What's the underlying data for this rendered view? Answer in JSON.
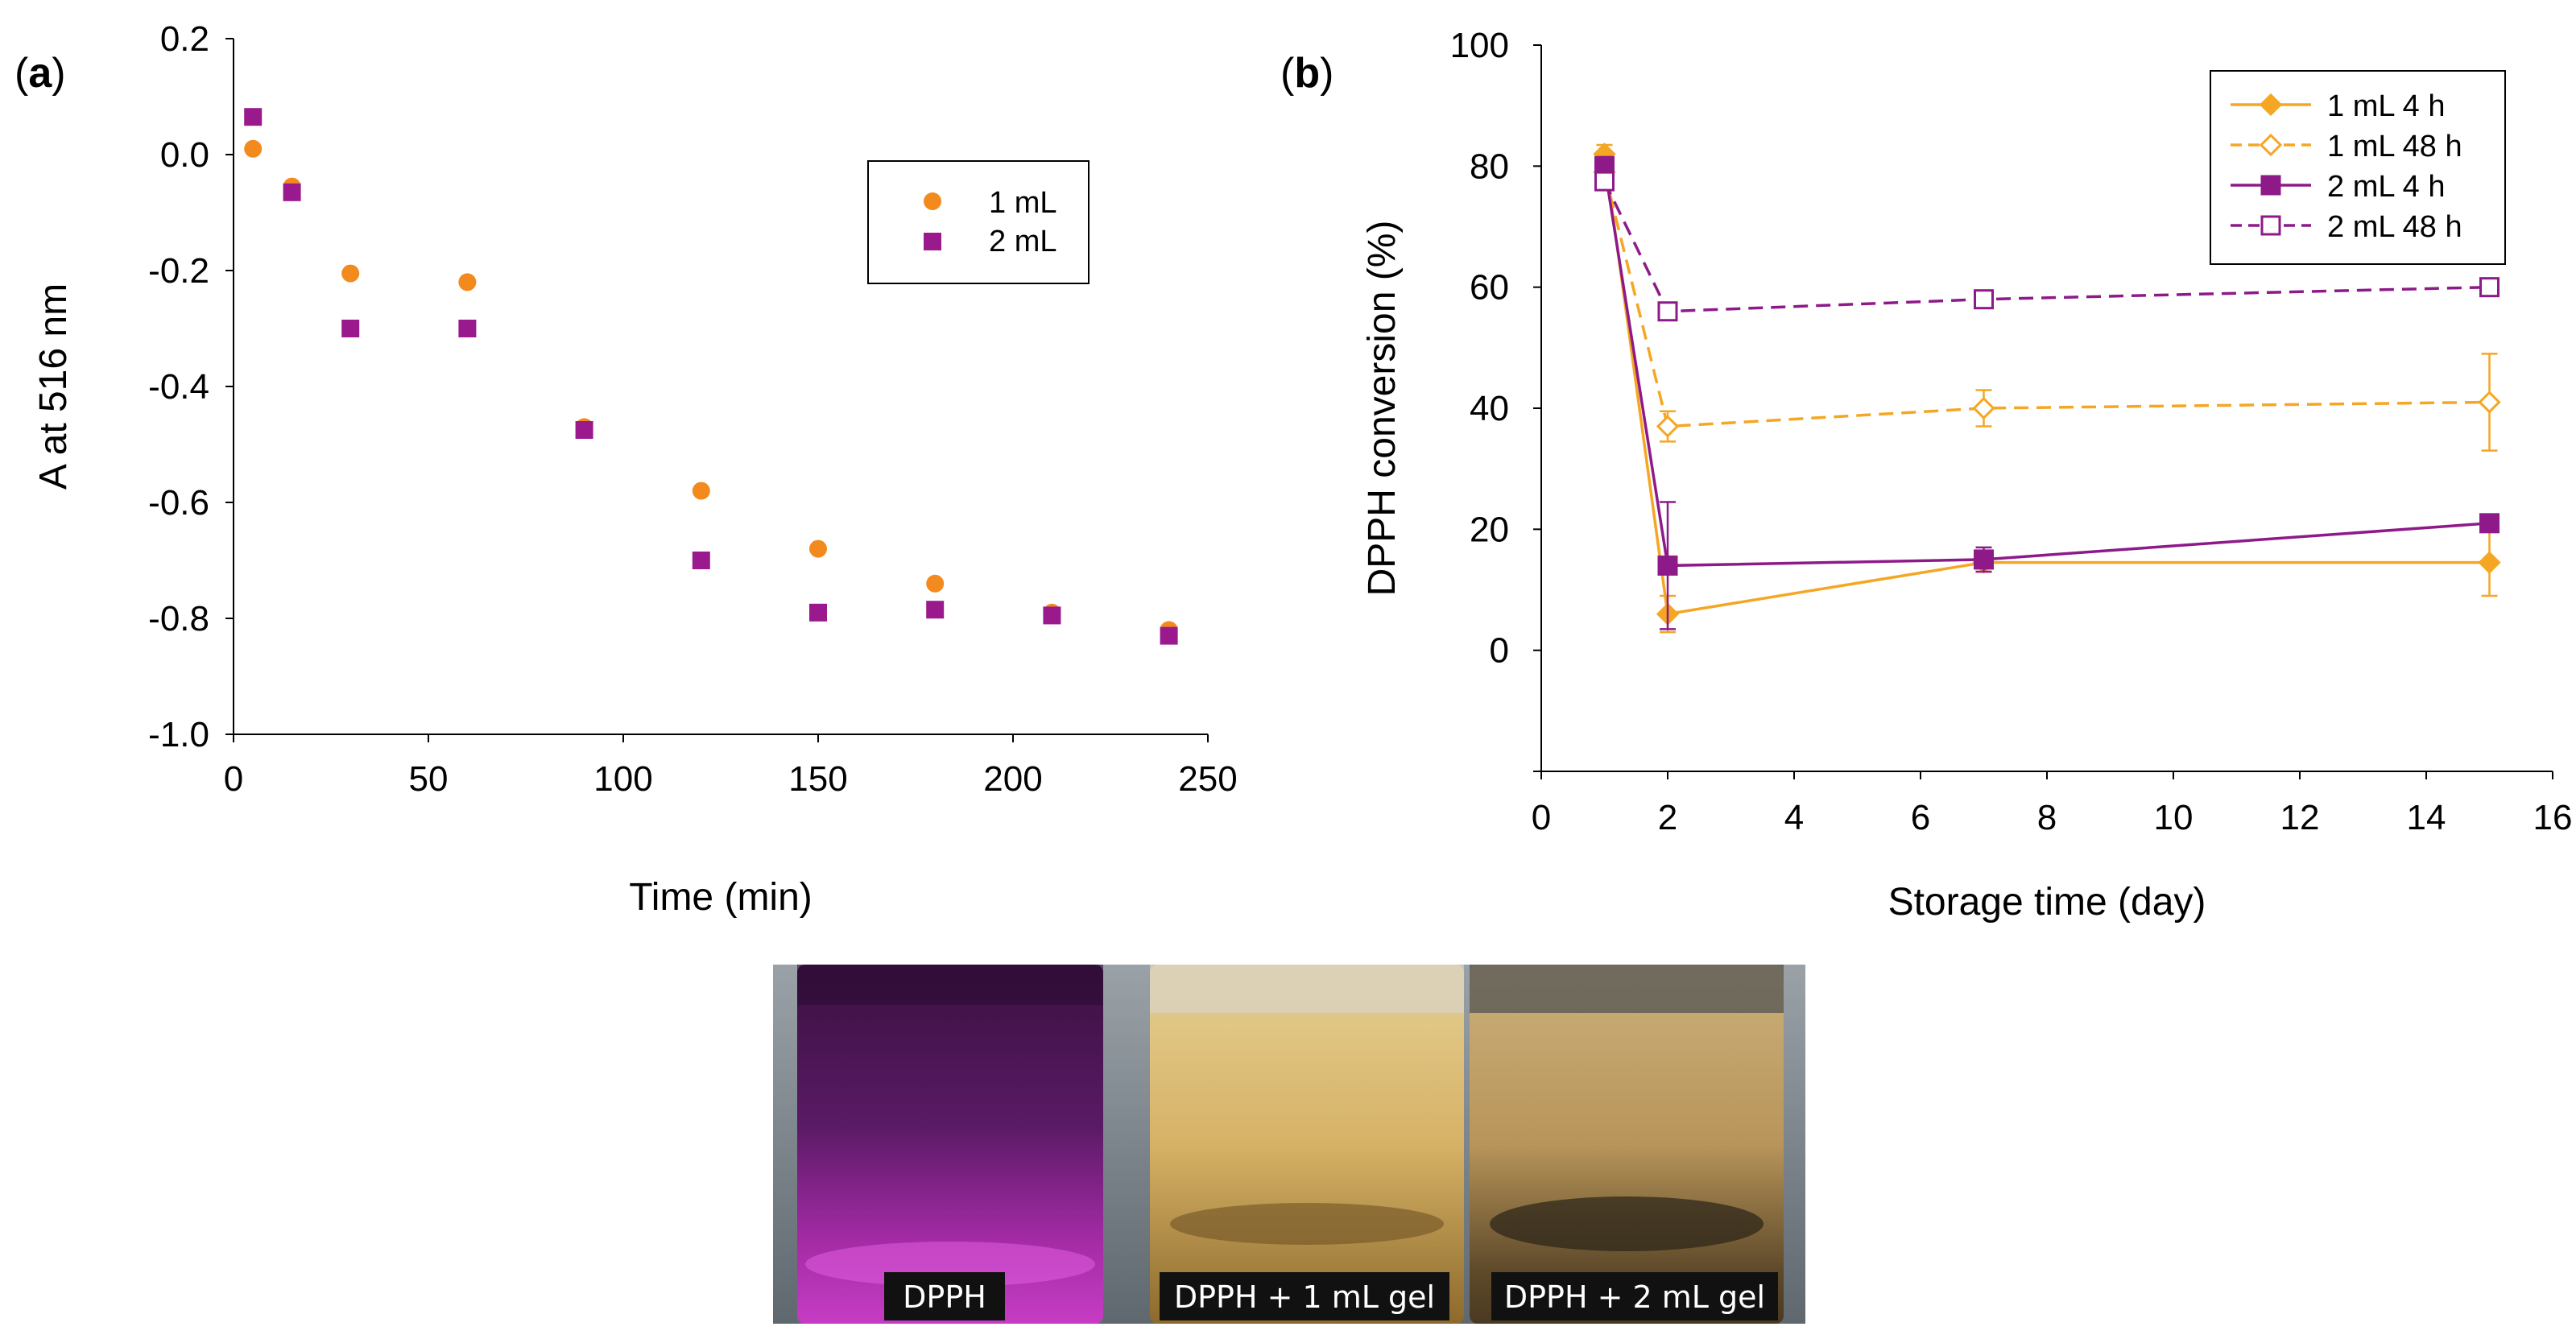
{
  "chart_data": [
    {
      "panel_label_open": "(",
      "panel_label_letter": "a",
      "panel_label_close": ")",
      "type": "scatter",
      "xlabel": "Time (min)",
      "ylabel": "A at 516 nm",
      "xlim": [
        0,
        250
      ],
      "ylim": [
        -1.0,
        0.2
      ],
      "xticks": [
        "0",
        "50",
        "100",
        "150",
        "200",
        "250"
      ],
      "yticks": [
        "0.2",
        "0.0",
        "-0.2",
        "-0.4",
        "-0.6",
        "-0.8",
        "-1.0"
      ],
      "legend_position": "upper-right",
      "series": [
        {
          "name": "1 mL",
          "color": "#f28a1e",
          "marker": "circle",
          "x": [
            5,
            15,
            30,
            60,
            90,
            120,
            150,
            180,
            210,
            240
          ],
          "y": [
            0.01,
            -0.055,
            -0.205,
            -0.22,
            -0.47,
            -0.58,
            -0.68,
            -0.74,
            -0.79,
            -0.82
          ]
        },
        {
          "name": "2 mL",
          "color": "#9a1a8e",
          "marker": "square",
          "x": [
            5,
            15,
            30,
            60,
            90,
            120,
            150,
            180,
            210,
            240
          ],
          "y": [
            0.065,
            -0.065,
            -0.3,
            -0.3,
            -0.475,
            -0.7,
            -0.79,
            -0.785,
            -0.795,
            -0.83
          ]
        }
      ]
    },
    {
      "panel_label_open": "(",
      "panel_label_letter": "b",
      "panel_label_close": ")",
      "type": "line",
      "xlabel": "Storage time (day)",
      "ylabel": "DPPH conversion (%)",
      "xlim": [
        0,
        16
      ],
      "ylim": [
        -20,
        100
      ],
      "xticks": [
        "0",
        "2",
        "4",
        "6",
        "8",
        "10",
        "12",
        "14",
        "16"
      ],
      "yticks": [
        "100",
        "80",
        "60",
        "40",
        "20",
        "0"
      ],
      "legend_position": "top-right",
      "series": [
        {
          "name": "1 mL 4 h",
          "color": "#f5a623",
          "marker": "diamond-filled",
          "dashed": false,
          "x": [
            1,
            2,
            7,
            15
          ],
          "y": [
            82,
            6,
            14.5,
            14.5
          ],
          "err": [
            1.5,
            3,
            1.5,
            5.5
          ]
        },
        {
          "name": "1 mL 48 h",
          "color": "#f5a623",
          "marker": "diamond-open",
          "dashed": true,
          "x": [
            1,
            2,
            7,
            15
          ],
          "y": [
            79,
            37,
            40,
            41
          ],
          "err": [
            1.5,
            2.5,
            3,
            8
          ]
        },
        {
          "name": "2 mL 4 h",
          "color": "#8e1a8a",
          "marker": "square-filled",
          "dashed": false,
          "x": [
            1,
            2,
            7,
            15
          ],
          "y": [
            80,
            14,
            15,
            21
          ],
          "err": [
            1.5,
            10.5,
            2,
            1
          ]
        },
        {
          "name": "2 mL 48 h",
          "color": "#8e1a8a",
          "marker": "square-open",
          "dashed": true,
          "x": [
            1,
            2,
            7,
            15
          ],
          "y": [
            77.5,
            56,
            58,
            60
          ],
          "err": [
            1,
            0.5,
            0.5,
            0.5
          ]
        }
      ]
    }
  ],
  "photo": {
    "captions": [
      "DPPH",
      "DPPH + 1 mL gel",
      "DPPH + 2 mL gel"
    ],
    "colors": {
      "vial1_top": "#3a1040",
      "vial1_bottom": "#c63cc4",
      "vial2_top": "#d6b266",
      "vial2_bottom": "#8d6a2c",
      "vial3_top": "#b8955a",
      "vial3_bottom": "#4a3a22"
    }
  }
}
